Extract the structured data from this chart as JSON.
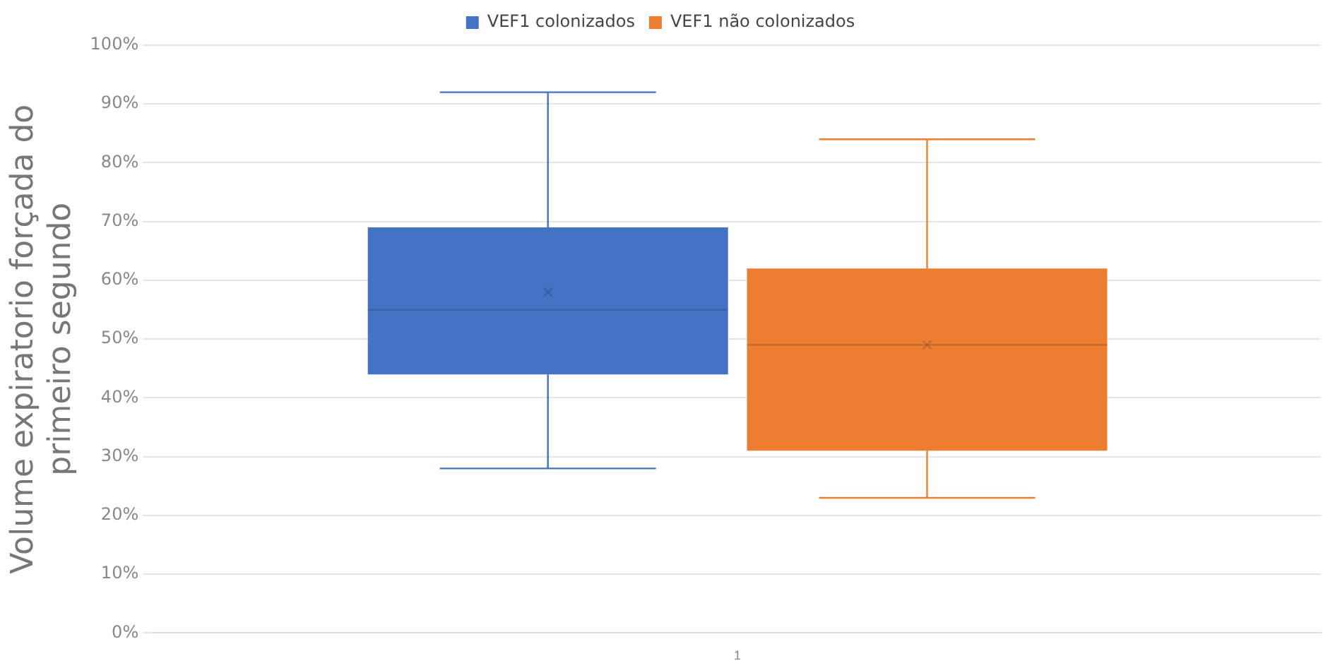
{
  "chart_data": {
    "type": "box",
    "ylabel": "Volume expiratorio forçada do primeiro segundo",
    "categories": [
      "1"
    ],
    "series": [
      {
        "name": "VEF1 colonizados",
        "color": "#4472c4",
        "boxes": [
          {
            "low": 28,
            "q1": 44,
            "median": 55,
            "q3": 69,
            "high": 92,
            "mean": 58
          }
        ]
      },
      {
        "name": "VEF1 não colonizados",
        "color": "#ed7d31",
        "boxes": [
          {
            "low": 23,
            "q1": 31,
            "median": 49,
            "q3": 62,
            "high": 84,
            "mean": 49
          }
        ]
      }
    ],
    "ylim": [
      0,
      100
    ],
    "yticks": [
      {
        "value": 0,
        "label": "0%"
      },
      {
        "value": 10,
        "label": "10%"
      },
      {
        "value": 20,
        "label": "20%"
      },
      {
        "value": 30,
        "label": "30%"
      },
      {
        "value": 40,
        "label": "40%"
      },
      {
        "value": 50,
        "label": "50%"
      },
      {
        "value": 60,
        "label": "60%"
      },
      {
        "value": 70,
        "label": "70%"
      },
      {
        "value": 80,
        "label": "80%"
      },
      {
        "value": 90,
        "label": "90%"
      },
      {
        "value": 100,
        "label": "100%"
      }
    ],
    "grid": "y",
    "legend": "top"
  }
}
